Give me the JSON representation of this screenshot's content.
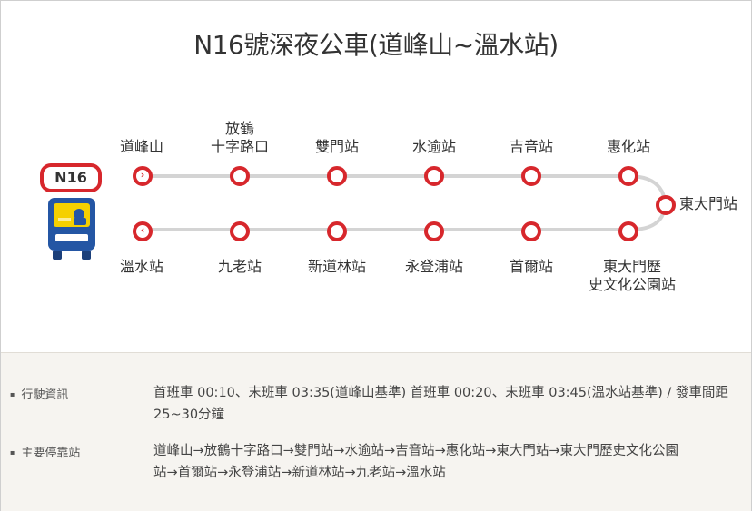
{
  "title": "N16號深夜公車(道峰山~溫水站)",
  "route": {
    "badge": "N16",
    "colors": {
      "accent": "#d7272c",
      "line": "#d4d4d4",
      "bus_body": "#2456a4",
      "bus_window": "#f5d000"
    },
    "top_stops": [
      {
        "lines": [
          "道峰山"
        ],
        "icon": "arrow-right-icon"
      },
      {
        "lines": [
          "放鶴",
          "十字路口"
        ]
      },
      {
        "lines": [
          "雙門站"
        ]
      },
      {
        "lines": [
          "水逾站"
        ]
      },
      {
        "lines": [
          "吉音站"
        ]
      },
      {
        "lines": [
          "惠化站"
        ]
      }
    ],
    "turn_stop": {
      "label": "東大門站"
    },
    "bottom_stops": [
      {
        "lines": [
          "溫水站"
        ],
        "icon": "arrow-left-icon"
      },
      {
        "lines": [
          "九老站"
        ]
      },
      {
        "lines": [
          "新道林站"
        ]
      },
      {
        "lines": [
          "永登浦站"
        ]
      },
      {
        "lines": [
          "首爾站"
        ]
      },
      {
        "lines": [
          "東大門歷",
          "史文化公園站"
        ]
      }
    ]
  },
  "info": {
    "operation": {
      "label": "行駛資訊",
      "text_lines": [
        "首班車 00:10、末班車 03:35(道峰山基準) 首班車 00:20、末班車 03:45(溫水站基準) / 發車間距",
        "25~30分鐘"
      ]
    },
    "stops": {
      "label": "主要停靠站",
      "text_lines": [
        "道峰山→放鶴十字路口→雙門站→水逾站→吉音站→惠化站→東大門站→東大門歷史文化公園",
        "站→首爾站→永登浦站→新道林站→九老站→溫水站"
      ]
    }
  }
}
